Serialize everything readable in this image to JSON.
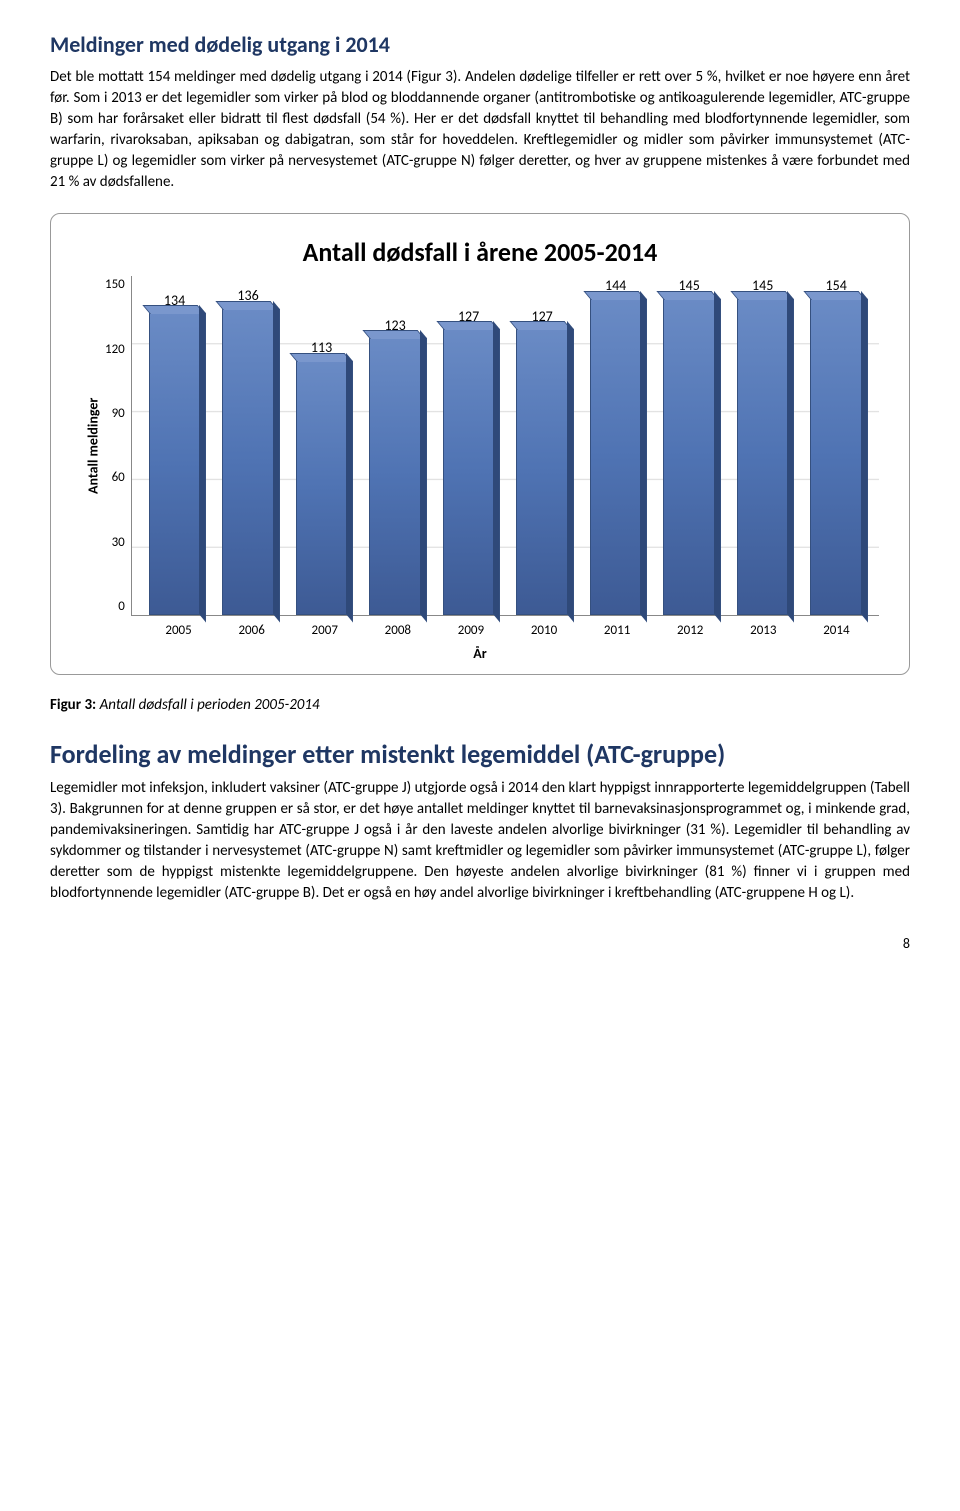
{
  "heading1": "Meldinger med dødelig utgang i 2014",
  "para1": "Det ble mottatt 154 meldinger med dødelig utgang i 2014 (Figur 3). Andelen dødelige tilfeller er rett over 5 %, hvilket er noe høyere enn året før. Som i 2013 er det legemidler som virker på blod og bloddannende organer (antitrombotiske og antikoagulerende legemidler, ATC-gruppe B) som har forårsaket eller bidratt til flest dødsfall (54 %). Her er det dødsfall knyttet til behandling med blodfortynnende legemidler, som warfarin, rivaroksaban, apiksaban og dabigatran, som står for hoveddelen. Kreftlegemidler og midler som påvirker immunsystemet (ATC-gruppe L) og legemidler som virker på nervesystemet (ATC-gruppe N) følger deretter, og hver av gruppene mistenkes å være forbundet med 21 % av dødsfallene.",
  "chart": {
    "type": "bar",
    "title": "Antall dødsfall i årene 2005-2014",
    "ylabel": "Antall meldinger",
    "xlabel": "År",
    "ylim": [
      0,
      150
    ],
    "ytick_step": 30,
    "yticks": [
      "150",
      "120",
      "90",
      "60",
      "30",
      "0"
    ],
    "categories": [
      "2005",
      "2006",
      "2007",
      "2008",
      "2009",
      "2010",
      "2011",
      "2012",
      "2013",
      "2014"
    ],
    "values": [
      134,
      136,
      113,
      123,
      127,
      127,
      144,
      145,
      145,
      154
    ],
    "bar_color": "#4f73b3",
    "bar_top_color": "#7a97cd",
    "bar_side_color": "#2f4979",
    "bar_border": "#35507f",
    "grid_color": "#d9d9d9",
    "background_color": "#ffffff",
    "bar_width": 0.7,
    "value_fontsize": 14,
    "title_fontsize": 26,
    "label_fontsize": 14,
    "tick_fontsize": 13
  },
  "fig_caption_bold": "Figur 3: ",
  "fig_caption_italic": "Antall dødsfall i perioden 2005-2014",
  "heading2": "Fordeling av meldinger etter mistenkt legemiddel (ATC-gruppe)",
  "para2": "Legemidler mot infeksjon, inkludert vaksiner (ATC-gruppe J) utgjorde også i 2014 den klart hyppigst innrapporterte legemiddelgruppen (Tabell 3). Bakgrunnen for at denne gruppen er så stor, er det høye antallet meldinger knyttet til barnevaksinasjonsprogrammet og, i minkende grad, pandemivaksineringen. Samtidig har ATC-gruppe J også i år den laveste andelen alvorlige bivirkninger (31 %). Legemidler til behandling av sykdommer og tilstander i nervesystemet (ATC-gruppe N) samt kreftmidler og legemidler som påvirker immunsystemet (ATC-gruppe L), følger deretter som de hyppigst mistenkte legemiddelgruppene. Den høyeste andelen alvorlige bivirkninger (81 %) finner vi i gruppen med blodfortynnende legemidler (ATC-gruppe B).  Det er også en høy andel alvorlige bivirkninger i kreftbehandling (ATC-gruppene H og L).",
  "page_number": "8"
}
